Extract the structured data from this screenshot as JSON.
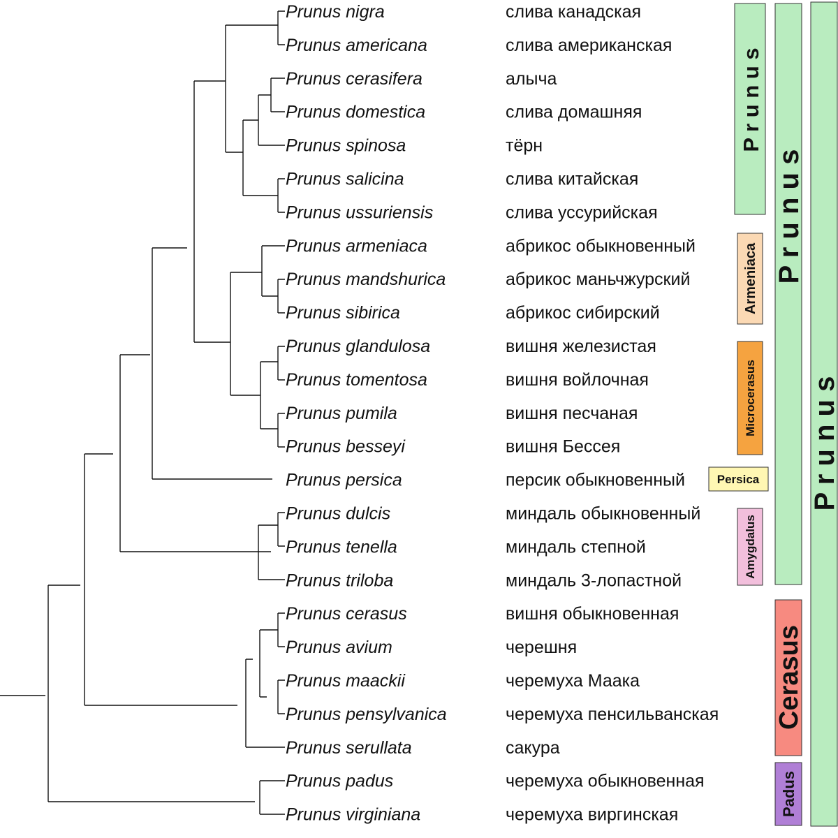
{
  "species": [
    {
      "latin": "Prunus nigra",
      "common": "слива канадская"
    },
    {
      "latin": "Prunus americana",
      "common": "слива американская"
    },
    {
      "latin": "Prunus cerasifera",
      "common": "алыча"
    },
    {
      "latin": "Prunus domestica",
      "common": "слива домашняя"
    },
    {
      "latin": "Prunus spinosa",
      "common": "тёрн"
    },
    {
      "latin": "Prunus salicina",
      "common": "слива китайская"
    },
    {
      "latin": "Prunus ussuriensis",
      "common": "слива уссурийская"
    },
    {
      "latin": "Prunus armeniaca",
      "common": "абрикос обыкновенный"
    },
    {
      "latin": "Prunus mandshurica",
      "common": "абрикос маньчжурский"
    },
    {
      "latin": "Prunus sibirica",
      "common": "абрикос сибирский"
    },
    {
      "latin": "Prunus glandulosa",
      "common": "вишня железистая"
    },
    {
      "latin": "Prunus tomentosa",
      "common": "вишня войлочная"
    },
    {
      "latin": "Prunus pumila",
      "common": "вишня песчаная"
    },
    {
      "latin": "Prunus besseyi",
      "common": "вишня Бессея"
    },
    {
      "latin": "Prunus persica",
      "common": "персик обыкновенный"
    },
    {
      "latin": "Prunus dulcis",
      "common": "миндаль обыкновенный"
    },
    {
      "latin": "Prunus tenella",
      "common": "миндаль степной"
    },
    {
      "latin": "Prunus triloba",
      "common": "миндаль 3-лопастной"
    },
    {
      "latin": "Prunus cerasus",
      "common": "вишня обыкновенная"
    },
    {
      "latin": "Prunus avium",
      "common": "черешня"
    },
    {
      "latin": "Prunus maackii",
      "common": "черемуха Маака"
    },
    {
      "latin": "Prunus pensylvanica",
      "common": "черемуха пенсильванская"
    },
    {
      "latin": "Prunus serullata",
      "common": "сакура"
    },
    {
      "latin": "Prunus padus",
      "common": "черемуха обыкновенная"
    },
    {
      "latin": "Prunus virginiana",
      "common": "черемуха виргинская"
    }
  ],
  "groups": {
    "prunus_section": {
      "label": "P r u n u s",
      "color": "#b9ecbf"
    },
    "armeniaca": {
      "label": "Armeniaca",
      "color": "#fbd9b4"
    },
    "microcerasus": {
      "label": "Microcerasus",
      "color": "#f5a340"
    },
    "persica": {
      "label": "Persica",
      "color": "#fff7b3"
    },
    "amygdalus": {
      "label": "Amygdalus",
      "color": "#f2bfdc"
    },
    "prunus_subgenus": {
      "label": "P r u n u s",
      "color": "#b9ecbf"
    },
    "cerasus": {
      "label": "Cerasus",
      "color": "#f78a80"
    },
    "padus": {
      "label": "Padus",
      "color": "#b07fd6"
    },
    "prunus_genus": {
      "label": "P r u n u s",
      "color": "#b9ecbf"
    }
  }
}
